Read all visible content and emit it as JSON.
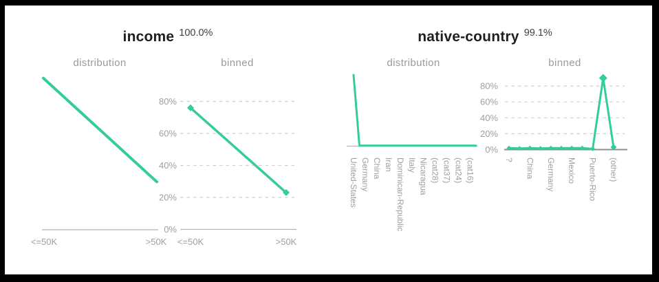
{
  "colors": {
    "accent_green": "#35cd96",
    "grid": "#cfcfcf",
    "axis_light": "#b5b5b5",
    "axis_dark": "#8e8e8e",
    "tick_text": "#9f9f9f",
    "title_text": "#1f1f1f",
    "subtitle_text": "#9a9a9a",
    "percent_text": "#404040",
    "frame": "#000000",
    "background": "#ffffff"
  },
  "panels": [
    {
      "title": "income",
      "percent": "100.0%",
      "subcharts": [
        "distribution",
        "binned"
      ]
    },
    {
      "title": "native-country",
      "percent": "99.1%",
      "subcharts": [
        "distribution",
        "binned"
      ]
    }
  ],
  "chart_data": [
    {
      "panel": "income",
      "subchart": "distribution",
      "type": "line",
      "categories": [
        "<=50K",
        ">50K"
      ],
      "values": [
        76,
        24
      ],
      "ylim": [
        0,
        80
      ],
      "y_ticks": null,
      "grid": null,
      "marker": null,
      "x_tick_labels": [
        "<=50K",
        ">50K"
      ]
    },
    {
      "panel": "income",
      "subchart": "binned",
      "type": "line",
      "categories": [
        "<=50K",
        ">50K"
      ],
      "values": [
        76,
        23
      ],
      "ylim": [
        0,
        100
      ],
      "y_ticks": [
        "0%",
        "20%",
        "40%",
        "60%",
        "80%"
      ],
      "grid": "dashed",
      "marker": "diamond",
      "x_tick_labels": [
        "<=50K",
        ">50K"
      ]
    },
    {
      "panel": "native-country",
      "subchart": "distribution",
      "type": "line",
      "categories": [
        "United-States",
        "Germany",
        "China",
        "Iran",
        "Dominican-Republic",
        "Italy",
        "Nicaragua",
        "(cat28)",
        "(cat37)",
        "(cat24)",
        "(cat16)"
      ],
      "values": [
        90,
        0.8,
        0.7,
        0.7,
        0.6,
        0.7,
        0.6,
        0.7,
        0.6,
        0.7,
        0.6,
        0.7,
        0.6,
        0.7,
        0.6,
        0.7,
        0.6,
        0.7,
        0.6,
        0.7,
        0.6,
        0.7
      ],
      "ylim": [
        0,
        95
      ],
      "y_ticks": null,
      "grid": null,
      "marker": null,
      "x_tick_labels": [
        "United-States",
        "Germany",
        "China",
        "Iran",
        "Dominican-Republic",
        "Italy",
        "Nicaragua",
        "(cat28)",
        "(cat37)",
        "(cat24)",
        "(cat16)"
      ],
      "x_tick_every": 2,
      "x_tick_rotation": 90
    },
    {
      "panel": "native-country",
      "subchart": "binned",
      "type": "line",
      "categories": [
        "?",
        "China",
        "Germany",
        "Mexico",
        "Puerto-Rico",
        "(other)"
      ],
      "values": [
        2,
        1.5,
        2,
        1.5,
        2,
        1.8,
        2,
        2,
        1,
        90,
        3
      ],
      "ylim": [
        0,
        100
      ],
      "y_ticks": [
        "0%",
        "20%",
        "40%",
        "60%",
        "80%"
      ],
      "grid": "dashed",
      "marker": "diamond",
      "x_tick_labels": [
        "?",
        "China",
        "Germany",
        "Mexico",
        "Puerto-Rico",
        "(other)"
      ],
      "x_tick_every": 2,
      "x_tick_rotation": 90
    }
  ]
}
